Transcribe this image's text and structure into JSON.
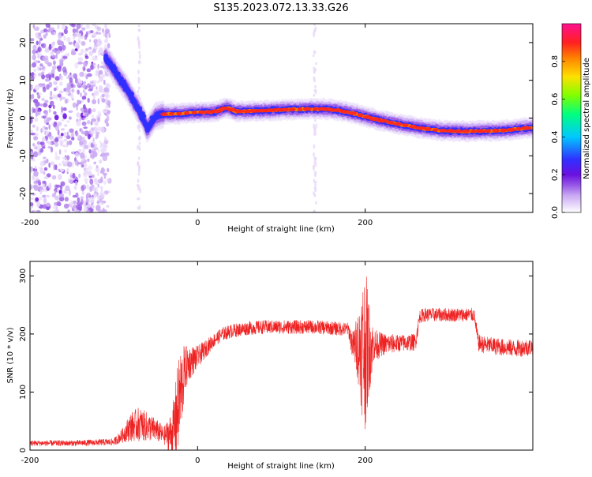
{
  "page": {
    "title": "S135.2023.072.13.33.G26"
  },
  "colors": {
    "snr_line": "#ee2222",
    "axis": "#000000",
    "colormap": [
      "#ffffff",
      "#e8d8fa",
      "#c9a8f2",
      "#9a5de6",
      "#6a10e0",
      "#3030ff",
      "#00c8ff",
      "#00ff80",
      "#80ff00",
      "#ffe000",
      "#ff8000",
      "#ff2020",
      "#ff1090"
    ]
  },
  "chart_data": [
    {
      "type": "heatmap",
      "name": "spectrogram",
      "xlabel": "Height of straight line (km)",
      "ylabel": "Frequency (Hz)",
      "xlim": [
        -200,
        400
      ],
      "ylim": [
        -25,
        25
      ],
      "x_ticks": [
        -200,
        0,
        200
      ],
      "y_ticks": [
        -20,
        -10,
        0,
        10,
        20
      ],
      "colorbar": {
        "label": "Normalized spectral amplitude",
        "range": [
          0,
          1
        ],
        "ticks": [
          "0.0",
          "0.2",
          "0.4",
          "0.6",
          "0.8"
        ]
      },
      "ridge": {
        "x": [
          -110,
          -103,
          -95,
          -85,
          -75,
          -65,
          -60,
          -55,
          -50,
          -40,
          -20,
          0,
          20,
          35,
          45,
          60,
          80,
          100,
          130,
          150,
          170,
          190,
          210,
          230,
          250,
          270,
          290,
          310,
          330,
          350,
          370,
          390,
          400
        ],
        "y": [
          16,
          14,
          11,
          8,
          4,
          0,
          -3,
          -1,
          0.5,
          1,
          1.2,
          1.5,
          1.6,
          2.8,
          1.8,
          1.8,
          2,
          2.2,
          2.4,
          2.4,
          2,
          1,
          -0.2,
          -1.2,
          -2,
          -2.8,
          -3.3,
          -3.5,
          -3.5,
          -3.4,
          -3.2,
          -2.7,
          -2.5
        ]
      }
    },
    {
      "type": "line",
      "name": "snr",
      "xlabel": "Height of straight line (km)",
      "ylabel": "SNR (10 * v/v)",
      "xlim": [
        -200,
        400
      ],
      "ylim": [
        0,
        325
      ],
      "x_ticks": [
        -200,
        0,
        200
      ],
      "y_ticks": [
        0,
        100,
        200,
        300
      ],
      "trend": {
        "x": [
          -200,
          -150,
          -100,
          -90,
          -80,
          -70,
          -60,
          -50,
          -40,
          -30,
          -25,
          -20,
          -15,
          -10,
          0,
          10,
          20,
          30,
          40,
          60,
          80,
          100,
          120,
          140,
          160,
          180,
          185,
          190,
          195,
          198,
          200,
          202,
          205,
          210,
          220,
          240,
          260,
          265,
          270,
          300,
          330,
          335,
          340,
          360,
          380,
          400
        ],
        "y": [
          12,
          12,
          14,
          25,
          40,
          45,
          40,
          35,
          25,
          30,
          60,
          100,
          140,
          150,
          160,
          175,
          190,
          200,
          205,
          210,
          212,
          212,
          212,
          212,
          210,
          208,
          180,
          180,
          175,
          175,
          175,
          175,
          178,
          180,
          182,
          184,
          186,
          230,
          233,
          233,
          233,
          185,
          182,
          178,
          175,
          178
        ]
      },
      "noise": {
        "x": [
          -200,
          -150,
          -100,
          -90,
          -80,
          -70,
          -60,
          -50,
          -40,
          -30,
          -25,
          -20,
          -15,
          -10,
          0,
          10,
          20,
          30,
          40,
          60,
          80,
          100,
          120,
          140,
          160,
          180,
          185,
          190,
          195,
          198,
          200,
          202,
          205,
          210,
          220,
          240,
          260,
          265,
          270,
          300,
          330,
          335,
          340,
          360,
          380,
          400
        ],
        "y": [
          5,
          5,
          6,
          12,
          25,
          30,
          25,
          20,
          15,
          40,
          80,
          80,
          40,
          30,
          20,
          15,
          12,
          12,
          12,
          12,
          12,
          12,
          12,
          12,
          12,
          12,
          25,
          50,
          100,
          140,
          140,
          120,
          80,
          30,
          20,
          15,
          15,
          12,
          12,
          12,
          12,
          15,
          15,
          15,
          15,
          15
        ]
      }
    }
  ]
}
